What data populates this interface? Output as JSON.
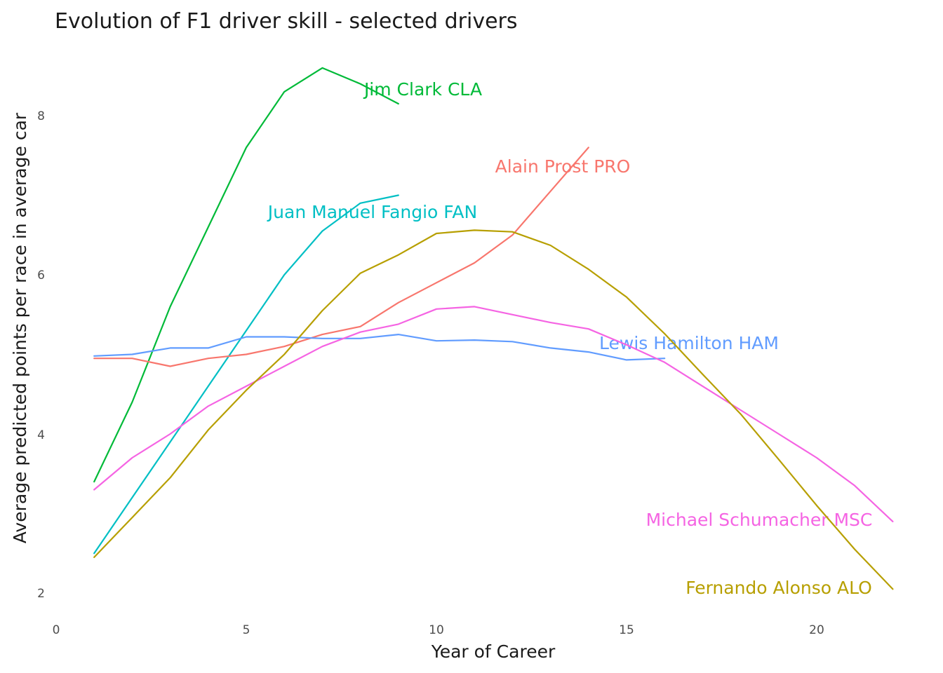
{
  "chart_data": {
    "type": "line",
    "title": "Evolution of F1 driver skill - selected drivers",
    "xlabel": "Year of Career",
    "ylabel": "Average predicted points per race in average car",
    "xlim": [
      0,
      22
    ],
    "ylim": [
      1.8,
      8.7
    ],
    "x_ticks": [
      "0",
      "5",
      "10",
      "15",
      "20"
    ],
    "y_ticks": [
      "2",
      "4",
      "6",
      "8"
    ],
    "grid": false,
    "legend": "none (direct labels)",
    "series": [
      {
        "name": "Jim Clark CLA",
        "color": "#00BA38",
        "x": [
          1,
          2,
          3,
          4,
          5,
          6,
          7,
          8,
          9
        ],
        "y": [
          3.4,
          4.4,
          5.6,
          6.6,
          7.6,
          8.3,
          8.6,
          8.4,
          8.15
        ]
      },
      {
        "name": "Juan Manuel Fangio FAN",
        "color": "#00BFC4",
        "x": [
          1,
          2,
          3,
          4,
          5,
          6,
          7,
          8,
          9
        ],
        "y": [
          2.5,
          3.2,
          3.9,
          4.6,
          5.3,
          6.0,
          6.55,
          6.9,
          7.0
        ]
      },
      {
        "name": "Alain Prost PRO",
        "color": "#F8766D",
        "x": [
          1,
          2,
          3,
          4,
          5,
          6,
          7,
          8,
          9,
          10,
          11,
          12,
          13,
          14
        ],
        "y": [
          4.95,
          4.95,
          4.85,
          4.95,
          5.0,
          5.1,
          5.25,
          5.35,
          5.65,
          5.9,
          6.15,
          6.5,
          7.05,
          7.6
        ]
      },
      {
        "name": "Lewis Hamilton HAM",
        "color": "#619CFF",
        "x": [
          1,
          2,
          3,
          4,
          5,
          6,
          7,
          8,
          9,
          10,
          11,
          12,
          13,
          14,
          15,
          16
        ],
        "y": [
          4.98,
          5.0,
          5.08,
          5.08,
          5.22,
          5.22,
          5.2,
          5.2,
          5.25,
          5.17,
          5.18,
          5.16,
          5.08,
          5.03,
          4.93,
          4.95
        ]
      },
      {
        "name": "Michael Schumacher MSC",
        "color": "#F564E3",
        "x": [
          1,
          2,
          3,
          4,
          5,
          6,
          7,
          8,
          9,
          10,
          11,
          12,
          13,
          14,
          15,
          16,
          17,
          18,
          19,
          20,
          21,
          22
        ],
        "y": [
          3.3,
          3.7,
          4.0,
          4.35,
          4.6,
          4.85,
          5.1,
          5.28,
          5.38,
          5.57,
          5.6,
          5.5,
          5.4,
          5.32,
          5.12,
          4.9,
          4.6,
          4.3,
          4.0,
          3.7,
          3.35,
          2.9
        ]
      },
      {
        "name": "Fernando Alonso ALO",
        "color": "#B79F00",
        "x": [
          1,
          2,
          3,
          4,
          5,
          6,
          7,
          8,
          9,
          10,
          11,
          12,
          13,
          14,
          15,
          16,
          17,
          18,
          19,
          20,
          21,
          22
        ],
        "y": [
          2.45,
          2.95,
          3.45,
          4.05,
          4.55,
          5.0,
          5.55,
          6.02,
          6.25,
          6.52,
          6.56,
          6.54,
          6.37,
          6.07,
          5.72,
          5.26,
          4.75,
          4.25,
          3.68,
          3.1,
          2.55,
          2.05
        ]
      }
    ]
  }
}
